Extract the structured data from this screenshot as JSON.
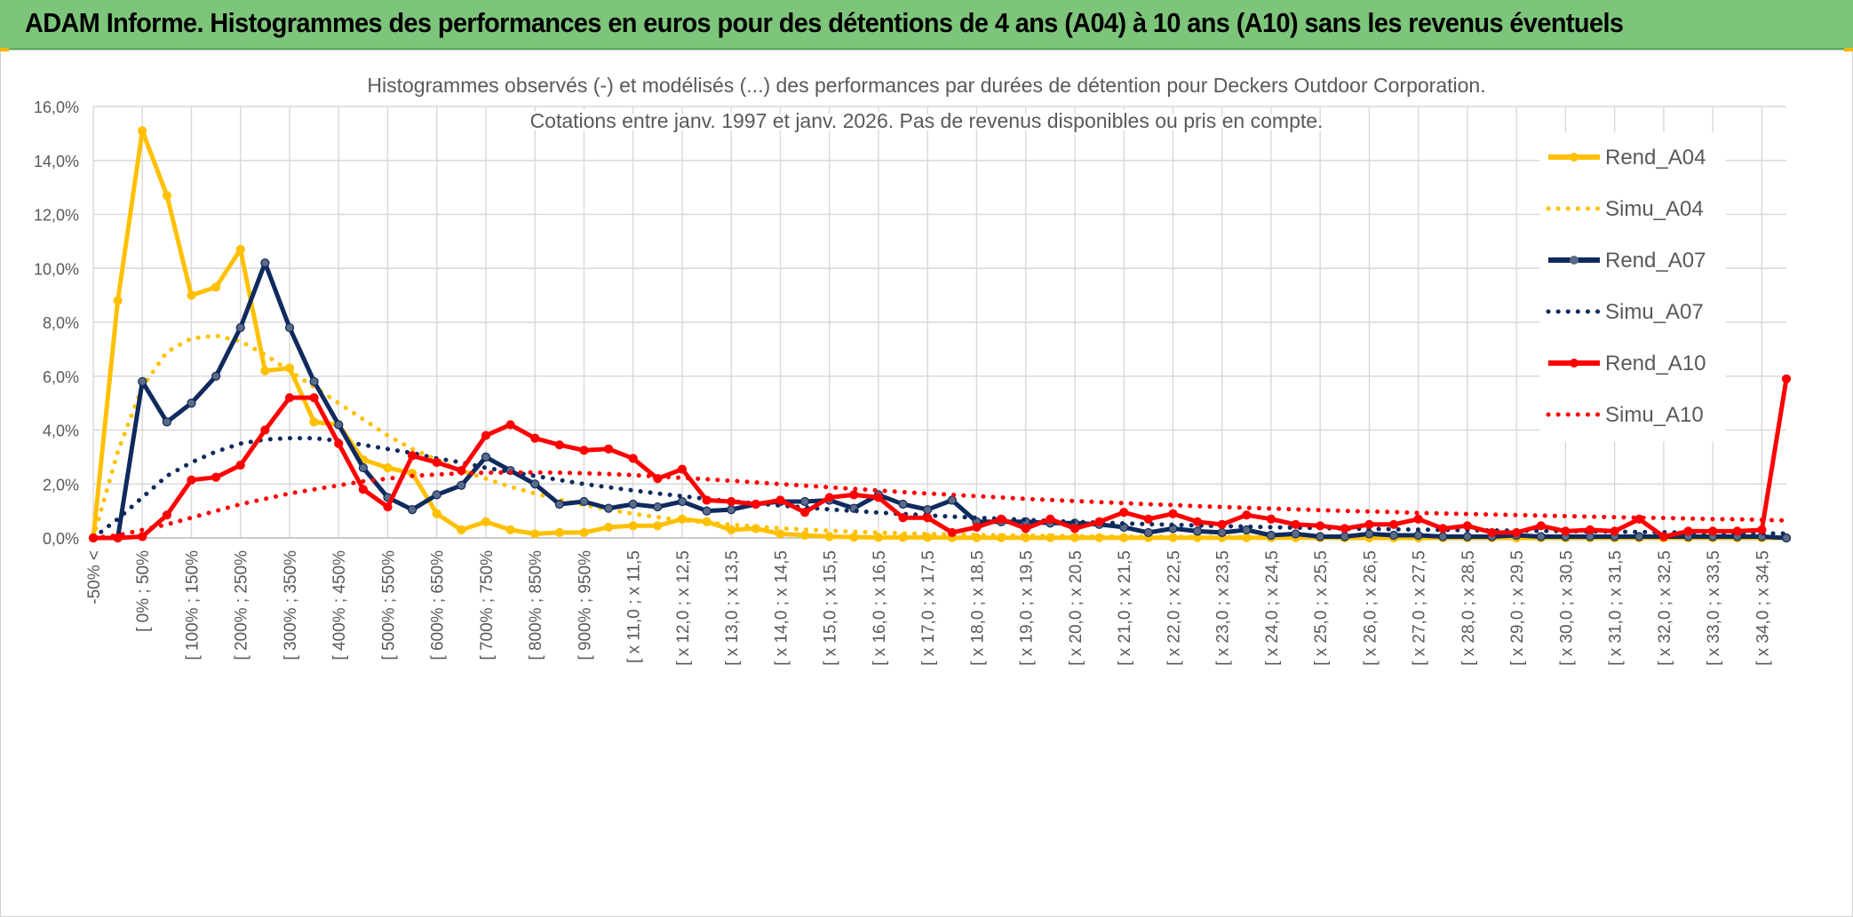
{
  "header": {
    "title": "ADAM Informe. Histogrammes des performances en euros pour des détentions de 4 ans (A04) à 10 ans (A10) sans les revenus éventuels"
  },
  "colors": {
    "banner": "#7dc57a",
    "a04": "#ffc000",
    "a07": "#0f2a5e",
    "a10": "#ff0000",
    "grid": "#d9d9d9",
    "text": "#595959"
  },
  "chart_data": {
    "type": "line",
    "title": "Histogrammes observés (-) et modélisés (...) des performances par durées de détention pour Deckers Outdoor Corporation.",
    "subtitle": "Cotations entre janv. 1997 et janv. 2026. Pas de revenus disponibles ou pris en compte.",
    "xlabel": "",
    "ylabel": "",
    "ylim": [
      0,
      16
    ],
    "yticks": [
      "0,0%",
      "2,0%",
      "4,0%",
      "6,0%",
      "8,0%",
      "10,0%",
      "12,0%",
      "14,0%",
      "16,0%"
    ],
    "grid": true,
    "legend_position": "top-right",
    "category_labels": [
      "-50% <",
      "[ 0% ; 50%",
      "[ 100% ; 150%",
      "[ 200% ; 250%",
      "[ 300% ; 350%",
      "[ 400% ; 450%",
      "[ 500% ; 550%",
      "[ 600% ; 650%",
      "[ 700% ; 750%",
      "[ 800% ; 850%",
      "[ 900% ; 950%",
      "[ x 11,0 ; x 11,5",
      "[ x 12,0 ; x 12,5",
      "[ x 13,0 ; x 13,5",
      "[ x 14,0 ; x 14,5",
      "[ x 15,0 ; x 15,5",
      "[ x 16,0 ; x 16,5",
      "[ x 17,0 ; x 17,5",
      "[ x 18,0 ; x 18,5",
      "[ x 19,0 ; x 19,5",
      "[ x 20,0 ; x 20,5",
      "[ x 21,0 ; x 21,5",
      "[ x 22,0 ; x 22,5",
      "[ x 23,0 ; x 23,5",
      "[ x 24,0 ; x 24,5",
      "[ x 25,0 ; x 25,5",
      "[ x 26,0 ; x 26,5",
      "[ x 27,0 ; x 27,5",
      "[ x 28,0 ; x 28,5",
      "[ x 29,0 ; x 29,5",
      "[ x 30,0 ; x 30,5",
      "[ x 31,0 ; x 31,5",
      "[ x 32,0 ; x 32,5",
      "[ x 33,0 ; x 33,5",
      "[ x 34,0 ; x 34,5"
    ],
    "n_points": 70,
    "series": [
      {
        "name": "Rend_A04",
        "style": "solid-marker",
        "color": "#ffc000",
        "values": [
          0.0,
          8.8,
          15.1,
          12.7,
          9.0,
          9.3,
          10.7,
          6.2,
          6.3,
          4.3,
          4.2,
          2.9,
          2.6,
          2.4,
          0.9,
          0.3,
          0.6,
          0.3,
          0.15,
          0.2,
          0.2,
          0.4,
          0.45,
          0.45,
          0.7,
          0.6,
          0.3,
          0.35,
          0.15,
          0.1,
          0.05,
          0.03,
          0.02,
          0.02,
          0.02,
          0.01,
          0.01,
          0.01,
          0.01,
          0.01,
          0.01,
          0.01,
          0.01,
          0.01,
          0.01,
          0.01,
          0.01,
          0.01,
          0.01,
          0.01,
          0.01,
          0.0,
          0.0,
          0.0,
          0.0,
          0.0,
          0.0,
          0.0,
          0.0,
          0.0,
          0.0,
          0.0,
          0.0,
          0.0,
          0.0,
          0.0,
          0.0,
          0.0,
          0.0,
          0.0
        ]
      },
      {
        "name": "Simu_A04",
        "style": "dotted",
        "color": "#ffc000",
        "values": [
          0.0,
          3.2,
          5.6,
          6.9,
          7.4,
          7.5,
          7.3,
          6.8,
          6.2,
          5.6,
          5.0,
          4.4,
          3.8,
          3.3,
          2.9,
          2.5,
          2.2,
          1.9,
          1.65,
          1.42,
          1.22,
          1.05,
          0.9,
          0.77,
          0.66,
          0.57,
          0.49,
          0.42,
          0.36,
          0.31,
          0.27,
          0.23,
          0.2,
          0.17,
          0.15,
          0.13,
          0.11,
          0.1,
          0.09,
          0.08,
          0.07,
          0.06,
          0.05,
          0.05,
          0.04,
          0.04,
          0.03,
          0.03,
          0.03,
          0.02,
          0.02,
          0.02,
          0.02,
          0.01,
          0.01,
          0.01,
          0.01,
          0.01,
          0.01,
          0.01,
          0.01,
          0.01,
          0.01,
          0.01,
          0.01,
          0.0,
          0.0,
          0.0,
          0.0,
          0.0
        ]
      },
      {
        "name": "Rend_A07",
        "style": "solid-marker",
        "color": "#0f2a5e",
        "values": [
          0.0,
          0.0,
          5.8,
          4.3,
          5.0,
          6.0,
          7.8,
          10.2,
          7.8,
          5.8,
          4.2,
          2.6,
          1.5,
          1.05,
          1.6,
          1.95,
          3.0,
          2.5,
          2.0,
          1.25,
          1.35,
          1.1,
          1.25,
          1.15,
          1.35,
          1.0,
          1.05,
          1.25,
          1.35,
          1.35,
          1.4,
          1.1,
          1.6,
          1.25,
          1.05,
          1.4,
          0.6,
          0.6,
          0.6,
          0.55,
          0.55,
          0.5,
          0.4,
          0.2,
          0.35,
          0.25,
          0.2,
          0.3,
          0.1,
          0.15,
          0.05,
          0.05,
          0.15,
          0.1,
          0.1,
          0.05,
          0.05,
          0.05,
          0.1,
          0.05,
          0.05,
          0.05,
          0.05,
          0.05,
          0.05,
          0.05,
          0.05,
          0.05,
          0.05,
          0.0
        ]
      },
      {
        "name": "Simu_A07",
        "style": "dotted",
        "color": "#0f2a5e",
        "values": [
          0.0,
          0.7,
          1.5,
          2.3,
          2.8,
          3.2,
          3.5,
          3.65,
          3.7,
          3.7,
          3.6,
          3.45,
          3.3,
          3.15,
          2.95,
          2.8,
          2.6,
          2.45,
          2.3,
          2.15,
          2.0,
          1.88,
          1.76,
          1.65,
          1.55,
          1.45,
          1.36,
          1.28,
          1.2,
          1.13,
          1.06,
          1.0,
          0.94,
          0.89,
          0.84,
          0.79,
          0.75,
          0.71,
          0.67,
          0.63,
          0.6,
          0.57,
          0.54,
          0.51,
          0.49,
          0.46,
          0.44,
          0.42,
          0.4,
          0.38,
          0.37,
          0.35,
          0.34,
          0.32,
          0.31,
          0.3,
          0.29,
          0.28,
          0.27,
          0.26,
          0.25,
          0.24,
          0.23,
          0.22,
          0.21,
          0.2,
          0.19,
          0.18,
          0.17,
          0.16
        ]
      },
      {
        "name": "Rend_A10",
        "style": "solid-marker",
        "color": "#ff0000",
        "values": [
          0.0,
          0.0,
          0.05,
          0.85,
          2.15,
          2.25,
          2.7,
          4.0,
          5.2,
          5.2,
          3.5,
          1.8,
          1.15,
          3.05,
          2.8,
          2.5,
          3.8,
          4.2,
          3.7,
          3.45,
          3.25,
          3.3,
          2.95,
          2.2,
          2.55,
          1.4,
          1.35,
          1.25,
          1.4,
          0.95,
          1.5,
          1.6,
          1.5,
          0.75,
          0.75,
          0.2,
          0.4,
          0.7,
          0.35,
          0.7,
          0.35,
          0.6,
          0.95,
          0.7,
          0.9,
          0.6,
          0.5,
          0.85,
          0.7,
          0.5,
          0.45,
          0.35,
          0.5,
          0.5,
          0.7,
          0.35,
          0.45,
          0.2,
          0.2,
          0.45,
          0.25,
          0.3,
          0.25,
          0.7,
          0.05,
          0.25,
          0.25,
          0.25,
          0.3,
          5.9
        ]
      },
      {
        "name": "Simu_A10",
        "style": "dotted",
        "color": "#ff0000",
        "values": [
          0.0,
          0.1,
          0.3,
          0.5,
          0.75,
          1.0,
          1.25,
          1.45,
          1.65,
          1.8,
          1.95,
          2.1,
          2.2,
          2.3,
          2.35,
          2.4,
          2.42,
          2.43,
          2.43,
          2.42,
          2.4,
          2.37,
          2.33,
          2.28,
          2.23,
          2.18,
          2.12,
          2.06,
          2.0,
          1.94,
          1.88,
          1.82,
          1.76,
          1.7,
          1.65,
          1.6,
          1.55,
          1.5,
          1.45,
          1.41,
          1.37,
          1.33,
          1.29,
          1.25,
          1.22,
          1.18,
          1.15,
          1.12,
          1.09,
          1.06,
          1.03,
          1.0,
          0.98,
          0.96,
          0.93,
          0.91,
          0.89,
          0.87,
          0.85,
          0.83,
          0.81,
          0.79,
          0.77,
          0.75,
          0.74,
          0.72,
          0.7,
          0.69,
          0.67,
          0.65
        ]
      }
    ]
  }
}
